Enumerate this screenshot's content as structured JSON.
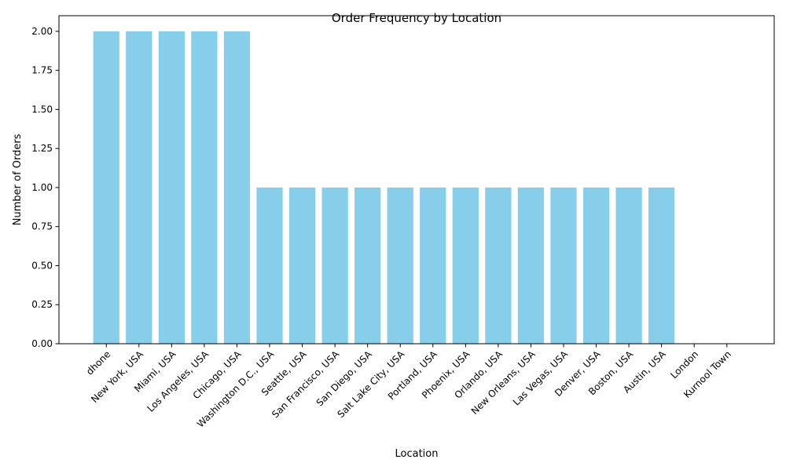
{
  "chart_data": {
    "type": "bar",
    "title": "Order Frequency by Location",
    "xlabel": "Location",
    "ylabel": "Number of Orders",
    "categories": [
      "dhone",
      "New York, USA",
      "Miami, USA",
      "Los Angeles, USA",
      "Chicago, USA",
      "Washington D.C., USA",
      "Seattle, USA",
      "San Francisco, USA",
      "San Diego, USA",
      "Salt Lake City, USA",
      "Portland, USA",
      "Phoenix, USA",
      "Orlando, USA",
      "New Orleans, USA",
      "Las Vegas, USA",
      "Denver, USA",
      "Boston, USA",
      "Austin, USA",
      "London",
      "Kurnool Town"
    ],
    "values": [
      2,
      2,
      2,
      2,
      2,
      1,
      1,
      1,
      1,
      1,
      1,
      1,
      1,
      1,
      1,
      1,
      1,
      1,
      0,
      0
    ],
    "ylim": [
      0,
      2.1
    ],
    "yticks": [
      "0.00",
      "0.25",
      "0.50",
      "0.75",
      "1.00",
      "1.25",
      "1.50",
      "1.75",
      "2.00"
    ],
    "bar_color": "#87CEEB",
    "grid": false,
    "legend": "none"
  }
}
